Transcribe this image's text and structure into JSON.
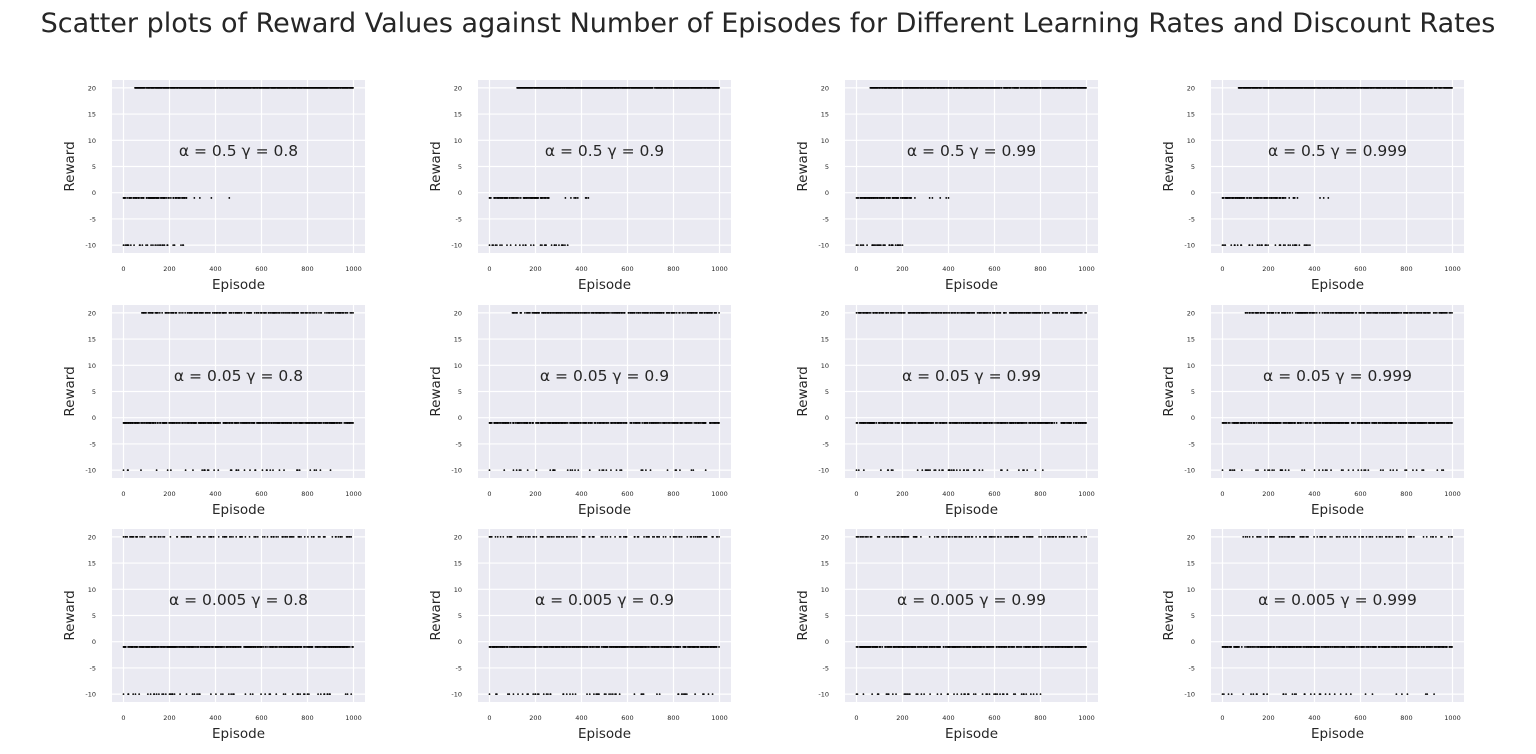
{
  "figure": {
    "title": "Scatter plots of Reward Values against Number of Episodes for Different Learning Rates and Discount Rates"
  },
  "chart_data": [
    {
      "type": "scatter",
      "annotation": "α = 0.5  γ = 0.8",
      "xlabel": "Episode",
      "ylabel": "Reward",
      "xlim": [
        -50,
        1050
      ],
      "ylim": [
        -11.5,
        21.5
      ],
      "xticks": [
        0,
        200,
        400,
        600,
        800,
        1000
      ],
      "yticks": [
        -10,
        -5,
        0,
        5,
        10,
        15,
        20
      ],
      "grid": true,
      "marker_color": "#000000",
      "series": [
        {
          "x_range": [
            50,
            999
          ],
          "y": 20,
          "density": 0.92
        },
        {
          "x_range": [
            0,
            460
          ],
          "y": -1,
          "density": 0.6,
          "tail_density": 0.08
        },
        {
          "x_range": [
            0,
            260
          ],
          "y": -10,
          "density": 0.2
        }
      ]
    },
    {
      "type": "scatter",
      "annotation": "α = 0.5  γ = 0.9",
      "xlabel": "Episode",
      "ylabel": "Reward",
      "xlim": [
        -50,
        1050
      ],
      "ylim": [
        -11.5,
        21.5
      ],
      "xticks": [
        0,
        200,
        400,
        600,
        800,
        1000
      ],
      "yticks": [
        -10,
        -5,
        0,
        5,
        10,
        15,
        20
      ],
      "grid": true,
      "marker_color": "#000000",
      "series": [
        {
          "x_range": [
            120,
            999
          ],
          "y": 20,
          "density": 0.93
        },
        {
          "x_range": [
            0,
            430
          ],
          "y": -1,
          "density": 0.6,
          "tail_density": 0.1
        },
        {
          "x_range": [
            0,
            340
          ],
          "y": -10,
          "density": 0.2
        }
      ]
    },
    {
      "type": "scatter",
      "annotation": "α = 0.5  γ = 0.99",
      "xlabel": "Episode",
      "ylabel": "Reward",
      "xlim": [
        -50,
        1050
      ],
      "ylim": [
        -11.5,
        21.5
      ],
      "xticks": [
        0,
        200,
        400,
        600,
        800,
        1000
      ],
      "yticks": [
        -10,
        -5,
        0,
        5,
        10,
        15,
        20
      ],
      "grid": true,
      "marker_color": "#000000",
      "series": [
        {
          "x_range": [
            60,
            999
          ],
          "y": 20,
          "density": 0.9
        },
        {
          "x_range": [
            0,
            400
          ],
          "y": -1,
          "density": 0.6,
          "tail_density": 0.08
        },
        {
          "x_range": [
            0,
            200
          ],
          "y": -10,
          "density": 0.25
        }
      ]
    },
    {
      "type": "scatter",
      "annotation": "α = 0.5  γ = 0.999",
      "xlabel": "Episode",
      "ylabel": "Reward",
      "xlim": [
        -50,
        1050
      ],
      "ylim": [
        -11.5,
        21.5
      ],
      "xticks": [
        0,
        200,
        400,
        600,
        800,
        1000
      ],
      "yticks": [
        -10,
        -5,
        0,
        5,
        10,
        15,
        20
      ],
      "grid": true,
      "marker_color": "#000000",
      "series": [
        {
          "x_range": [
            70,
            999
          ],
          "y": 20,
          "density": 0.9
        },
        {
          "x_range": [
            0,
            460
          ],
          "y": -1,
          "density": 0.6,
          "tail_density": 0.08
        },
        {
          "x_range": [
            0,
            380
          ],
          "y": -10,
          "density": 0.2
        }
      ]
    },
    {
      "type": "scatter",
      "annotation": "α = 0.05  γ = 0.8",
      "xlabel": "Episode",
      "ylabel": "Reward",
      "xlim": [
        -50,
        1050
      ],
      "ylim": [
        -11.5,
        21.5
      ],
      "xticks": [
        0,
        200,
        400,
        600,
        800,
        1000
      ],
      "yticks": [
        -10,
        -5,
        0,
        5,
        10,
        15,
        20
      ],
      "grid": true,
      "marker_color": "#000000",
      "series": [
        {
          "x_range": [
            80,
            999
          ],
          "y": 20,
          "density": 0.45
        },
        {
          "x_range": [
            0,
            999
          ],
          "y": -1,
          "density": 0.6
        },
        {
          "x_range": [
            0,
            900
          ],
          "y": -10,
          "density": 0.08
        }
      ]
    },
    {
      "type": "scatter",
      "annotation": "α = 0.05  γ = 0.9",
      "xlabel": "Episode",
      "ylabel": "Reward",
      "xlim": [
        -50,
        1050
      ],
      "ylim": [
        -11.5,
        21.5
      ],
      "xticks": [
        0,
        200,
        400,
        600,
        800,
        1000
      ],
      "yticks": [
        -10,
        -5,
        0,
        5,
        10,
        15,
        20
      ],
      "grid": true,
      "marker_color": "#000000",
      "series": [
        {
          "x_range": [
            100,
            999
          ],
          "y": 20,
          "density": 0.5
        },
        {
          "x_range": [
            0,
            999
          ],
          "y": -1,
          "density": 0.6
        },
        {
          "x_range": [
            0,
            940
          ],
          "y": -10,
          "density": 0.08
        }
      ]
    },
    {
      "type": "scatter",
      "annotation": "α = 0.05  γ = 0.99",
      "xlabel": "Episode",
      "ylabel": "Reward",
      "xlim": [
        -50,
        1050
      ],
      "ylim": [
        -11.5,
        21.5
      ],
      "xticks": [
        0,
        200,
        400,
        600,
        800,
        1000
      ],
      "yticks": [
        -10,
        -5,
        0,
        5,
        10,
        15,
        20
      ],
      "grid": true,
      "marker_color": "#000000",
      "series": [
        {
          "x_range": [
            0,
            999
          ],
          "y": 20,
          "density": 0.5
        },
        {
          "x_range": [
            0,
            999
          ],
          "y": -1,
          "density": 0.6
        },
        {
          "x_range": [
            0,
            810
          ],
          "y": -10,
          "density": 0.1
        }
      ]
    },
    {
      "type": "scatter",
      "annotation": "α = 0.05  γ = 0.999",
      "xlabel": "Episode",
      "ylabel": "Reward",
      "xlim": [
        -50,
        1050
      ],
      "ylim": [
        -11.5,
        21.5
      ],
      "xticks": [
        0,
        200,
        400,
        600,
        800,
        1000
      ],
      "yticks": [
        -10,
        -5,
        0,
        5,
        10,
        15,
        20
      ],
      "grid": true,
      "marker_color": "#000000",
      "series": [
        {
          "x_range": [
            100,
            999
          ],
          "y": 20,
          "density": 0.5
        },
        {
          "x_range": [
            0,
            999
          ],
          "y": -1,
          "density": 0.6
        },
        {
          "x_range": [
            0,
            960
          ],
          "y": -10,
          "density": 0.08
        }
      ]
    },
    {
      "type": "scatter",
      "annotation": "α = 0.005  γ = 0.8",
      "xlabel": "Episode",
      "ylabel": "Reward",
      "xlim": [
        -50,
        1050
      ],
      "ylim": [
        -11.5,
        21.5
      ],
      "xticks": [
        0,
        200,
        400,
        600,
        800,
        1000
      ],
      "yticks": [
        -10,
        -5,
        0,
        5,
        10,
        15,
        20
      ],
      "grid": true,
      "marker_color": "#000000",
      "series": [
        {
          "x_range": [
            0,
            990
          ],
          "y": 20,
          "density": 0.22
        },
        {
          "x_range": [
            0,
            999
          ],
          "y": -1,
          "density": 0.65
        },
        {
          "x_range": [
            0,
            990
          ],
          "y": -10,
          "density": 0.1
        }
      ]
    },
    {
      "type": "scatter",
      "annotation": "α = 0.005  γ = 0.9",
      "xlabel": "Episode",
      "ylabel": "Reward",
      "xlim": [
        -50,
        1050
      ],
      "ylim": [
        -11.5,
        21.5
      ],
      "xticks": [
        0,
        200,
        400,
        600,
        800,
        1000
      ],
      "yticks": [
        -10,
        -5,
        0,
        5,
        10,
        15,
        20
      ],
      "grid": true,
      "marker_color": "#000000",
      "series": [
        {
          "x_range": [
            0,
            999
          ],
          "y": 20,
          "density": 0.24
        },
        {
          "x_range": [
            0,
            999
          ],
          "y": -1,
          "density": 0.65
        },
        {
          "x_range": [
            0,
            970
          ],
          "y": -10,
          "density": 0.1
        }
      ]
    },
    {
      "type": "scatter",
      "annotation": "α = 0.005  γ = 0.99",
      "xlabel": "Episode",
      "ylabel": "Reward",
      "xlim": [
        -50,
        1050
      ],
      "ylim": [
        -11.5,
        21.5
      ],
      "xticks": [
        0,
        200,
        400,
        600,
        800,
        1000
      ],
      "yticks": [
        -10,
        -5,
        0,
        5,
        10,
        15,
        20
      ],
      "grid": true,
      "marker_color": "#000000",
      "series": [
        {
          "x_range": [
            0,
            999
          ],
          "y": 20,
          "density": 0.26
        },
        {
          "x_range": [
            0,
            999
          ],
          "y": -1,
          "density": 0.65
        },
        {
          "x_range": [
            0,
            800
          ],
          "y": -10,
          "density": 0.12
        }
      ]
    },
    {
      "type": "scatter",
      "annotation": "α = 0.005  γ = 0.999",
      "xlabel": "Episode",
      "ylabel": "Reward",
      "xlim": [
        -50,
        1050
      ],
      "ylim": [
        -11.5,
        21.5
      ],
      "xticks": [
        0,
        200,
        400,
        600,
        800,
        1000
      ],
      "yticks": [
        -10,
        -5,
        0,
        5,
        10,
        15,
        20
      ],
      "grid": true,
      "marker_color": "#000000",
      "series": [
        {
          "x_range": [
            90,
            999
          ],
          "y": 20,
          "density": 0.26
        },
        {
          "x_range": [
            0,
            999
          ],
          "y": -1,
          "density": 0.65
        },
        {
          "x_range": [
            0,
            920
          ],
          "y": -10,
          "density": 0.1
        }
      ]
    }
  ]
}
